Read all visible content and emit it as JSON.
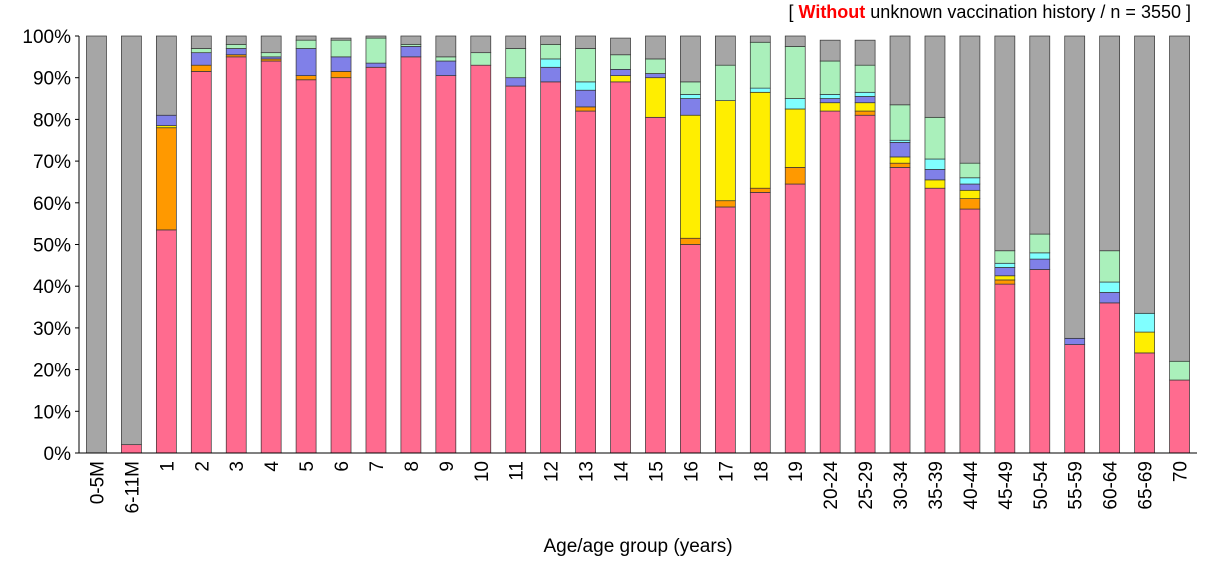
{
  "chart_data": {
    "type": "bar",
    "stacked": true,
    "normalized": true,
    "title_prefix": "[ ",
    "title_highlight": "Without",
    "title_rest": "  unknown vaccination history  / n = 3550 ]",
    "xlabel": "Age/age group (years)",
    "ylabel": "",
    "ylim": [
      0,
      100
    ],
    "yticks": [
      "0%",
      "10%",
      "20%",
      "30%",
      "40%",
      "50%",
      "60%",
      "70%",
      "80%",
      "90%",
      "100%"
    ],
    "grid": false,
    "legend": "none",
    "categories": [
      "0-5M",
      "6-11M",
      "1",
      "2",
      "3",
      "4",
      "5",
      "6",
      "7",
      "8",
      "9",
      "10",
      "11",
      "12",
      "13",
      "14",
      "15",
      "16",
      "17",
      "18",
      "19",
      "20-24",
      "25-29",
      "30-34",
      "35-39",
      "40-44",
      "45-49",
      "50-54",
      "55-59",
      "60-64",
      "65-69",
      "70"
    ],
    "series": [
      {
        "color": "#ff6b8f",
        "values": [
          0,
          2,
          53.5,
          91.5,
          95,
          94,
          89.5,
          90,
          92.5,
          95,
          90.5,
          93,
          88,
          89,
          82,
          89,
          80.5,
          50,
          59,
          62.5,
          64.5,
          82,
          81,
          68.5,
          63.5,
          58.5,
          40.5,
          44,
          26,
          36,
          24,
          17.5
        ]
      },
      {
        "color": "#ff9900",
        "values": [
          0,
          0,
          24.5,
          1.5,
          0.5,
          0.5,
          1,
          1.5,
          0,
          0,
          0,
          0,
          0,
          0,
          1,
          0,
          0,
          1.5,
          1.5,
          1,
          4,
          0,
          1,
          1,
          0,
          2.5,
          1,
          0,
          0,
          0,
          0,
          0
        ]
      },
      {
        "color": "#ffee00",
        "values": [
          0,
          0,
          0.5,
          0,
          0,
          0,
          0,
          0,
          0,
          0,
          0,
          0,
          0,
          0,
          0,
          1.5,
          9.5,
          29.5,
          24,
          23,
          14,
          2,
          2,
          1.5,
          2,
          2,
          1,
          0,
          0,
          0,
          5,
          0
        ]
      },
      {
        "color": "#8080e8",
        "values": [
          0,
          0,
          2.5,
          3,
          1.5,
          0.5,
          6.5,
          3.5,
          1,
          2.5,
          3.5,
          0,
          2,
          3.5,
          4,
          1.5,
          1,
          4,
          0,
          0,
          0,
          1,
          1.5,
          3.5,
          2.5,
          1.5,
          2,
          2.5,
          1.5,
          2.5,
          0,
          0
        ]
      },
      {
        "color": "#80ffff",
        "values": [
          0,
          0,
          0,
          0,
          0,
          0,
          0,
          0,
          0,
          0,
          0,
          0,
          0,
          2,
          2,
          0,
          0,
          1,
          0,
          1,
          2.5,
          1,
          1,
          0.5,
          2.5,
          1.5,
          1,
          1.5,
          0,
          2.5,
          4.5,
          0
        ]
      },
      {
        "color": "#aaf0bb",
        "values": [
          0,
          0,
          0,
          1,
          1,
          1,
          2,
          4,
          6,
          0.5,
          1,
          3,
          7,
          3.5,
          8,
          3.5,
          3.5,
          3,
          8.5,
          11,
          12.5,
          8,
          6.5,
          8.5,
          10,
          3.5,
          3,
          4.5,
          0,
          7.5,
          0,
          4.5
        ]
      },
      {
        "color": "#a6a6a6",
        "values": [
          100,
          98,
          19,
          3,
          2,
          4,
          1,
          0.5,
          0.5,
          2,
          5,
          4,
          3,
          2,
          3,
          4,
          5.5,
          11,
          7,
          1.5,
          2.5,
          5,
          6,
          16.5,
          19.5,
          30.5,
          51.5,
          47.5,
          72.5,
          51.5,
          66.5,
          78
        ]
      }
    ]
  }
}
